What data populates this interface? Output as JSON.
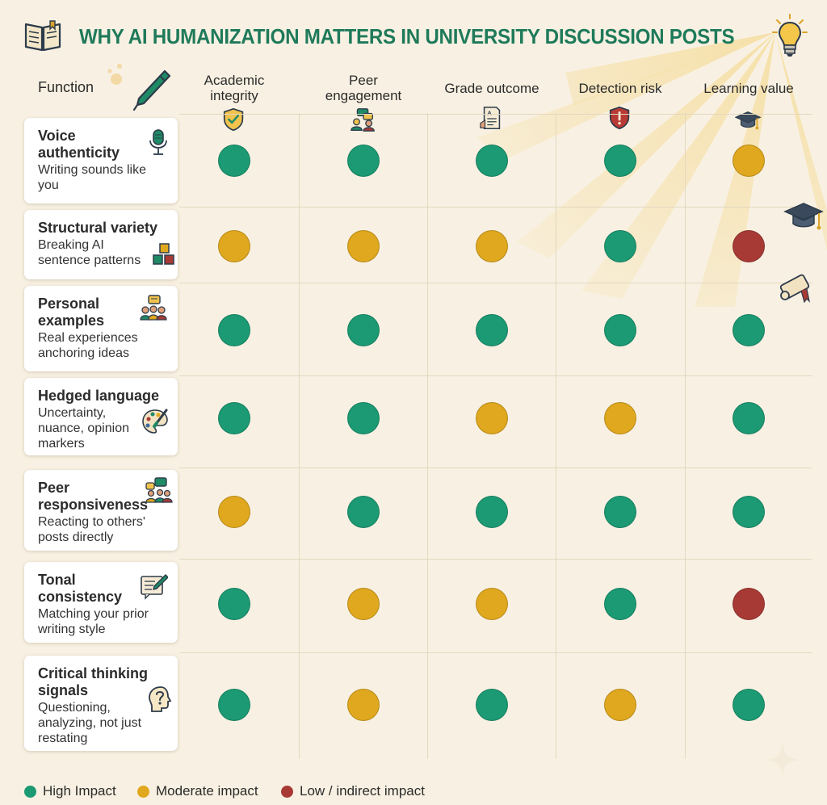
{
  "title": "WHY AI HUMANIZATION MATTERS IN UNIVERSITY DISCUSSION POSTS",
  "colors": {
    "high": "#1b9a74",
    "moderate": "#e0a81e",
    "low": "#a83a36",
    "title": "#1f7a5a"
  },
  "header": {
    "function_label": "Function",
    "columns": [
      {
        "label": "Academic integrity",
        "lines": [
          "Academic",
          "integrity"
        ],
        "icon": "shield-check-icon"
      },
      {
        "label": "Peer engagement",
        "lines": [
          "Peer",
          "engagement"
        ],
        "icon": "people-chat-icon"
      },
      {
        "label": "Grade outcome",
        "lines": [
          "Grade outcome"
        ],
        "icon": "graded-paper-icon"
      },
      {
        "label": "Detection risk",
        "lines": [
          "Detection risk"
        ],
        "icon": "shield-alert-icon"
      },
      {
        "label": "Learning value",
        "lines": [
          "Learning value"
        ],
        "icon": "graduation-cap-icon"
      }
    ]
  },
  "rows": [
    {
      "title_lines": [
        "Voice",
        "authenticity"
      ],
      "desc_lines": [
        "Writing sounds like",
        "you"
      ],
      "icon": "microphone-icon",
      "ratings": [
        "high",
        "high",
        "high",
        "high",
        "moderate"
      ]
    },
    {
      "title_lines": [
        "Structural variety"
      ],
      "desc_lines": [
        "Breaking AI",
        "sentence patterns"
      ],
      "icon": "blocks-icon",
      "ratings": [
        "moderate",
        "moderate",
        "moderate",
        "high",
        "low"
      ]
    },
    {
      "title_lines": [
        "Personal",
        "examples"
      ],
      "desc_lines": [
        "Real experiences",
        "anchoring ideas"
      ],
      "icon": "group-speech-icon",
      "ratings": [
        "high",
        "high",
        "high",
        "high",
        "high"
      ]
    },
    {
      "title_lines": [
        "Hedged language"
      ],
      "desc_lines": [
        "Uncertainty,",
        "nuance, opinion",
        "markers"
      ],
      "icon": "palette-brush-icon",
      "ratings": [
        "high",
        "high",
        "moderate",
        "moderate",
        "high"
      ]
    },
    {
      "title_lines": [
        "Peer",
        "responsiveness"
      ],
      "desc_lines": [
        "Reacting to others'",
        "posts directly"
      ],
      "icon": "peer-chat-icon",
      "ratings": [
        "moderate",
        "high",
        "high",
        "high",
        "high"
      ]
    },
    {
      "title_lines": [
        "Tonal",
        "consistency"
      ],
      "desc_lines": [
        "Matching your prior",
        "writing style"
      ],
      "icon": "note-pencil-icon",
      "ratings": [
        "high",
        "moderate",
        "moderate",
        "high",
        "low"
      ]
    },
    {
      "title_lines": [
        "Critical thinking",
        "signals"
      ],
      "desc_lines": [
        "Questioning,",
        "analyzing, not just",
        "restating"
      ],
      "icon": "head-question-icon",
      "ratings": [
        "high",
        "moderate",
        "high",
        "moderate",
        "high"
      ]
    }
  ],
  "legend": [
    {
      "key": "high",
      "label": "High Impact"
    },
    {
      "key": "moderate",
      "label": "Moderate impact"
    },
    {
      "key": "low",
      "label": "Low / indirect impact"
    }
  ]
}
